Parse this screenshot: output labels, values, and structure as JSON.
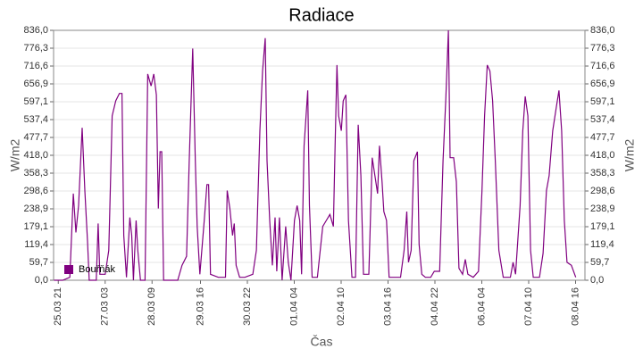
{
  "chart_data": {
    "type": "line",
    "title": "Radiace",
    "x_label": "Čas",
    "y_label": "W/m2",
    "y2_label": "W/m2",
    "xlim": [
      18,
      358
    ],
    "xticks": [
      {
        "value": 21,
        "label": "25.03 21"
      },
      {
        "value": 51,
        "label": "27.03 03"
      },
      {
        "value": 81,
        "label": "28.03 09"
      },
      {
        "value": 112,
        "label": "29.03 16"
      },
      {
        "value": 142,
        "label": "30.03 22"
      },
      {
        "value": 172,
        "label": "01.04 04"
      },
      {
        "value": 202,
        "label": "02.04 10"
      },
      {
        "value": 232,
        "label": "03.04 16"
      },
      {
        "value": 262,
        "label": "04.04 22"
      },
      {
        "value": 292,
        "label": "06.04 04"
      },
      {
        "value": 322,
        "label": "07.04 10"
      },
      {
        "value": 352,
        "label": "08.04 16"
      }
    ],
    "ylim": [
      0,
      836
    ],
    "yticks": [
      {
        "value": 0,
        "label": "0,0"
      },
      {
        "value": 59.7,
        "label": "59,7"
      },
      {
        "value": 119.4,
        "label": "119,4"
      },
      {
        "value": 179.1,
        "label": "179,1"
      },
      {
        "value": 238.9,
        "label": "238,9"
      },
      {
        "value": 298.6,
        "label": "298,6"
      },
      {
        "value": 358.3,
        "label": "358,3"
      },
      {
        "value": 418.0,
        "label": "418,0"
      },
      {
        "value": 477.7,
        "label": "477,7"
      },
      {
        "value": 537.4,
        "label": "537,4"
      },
      {
        "value": 597.1,
        "label": "597,1"
      },
      {
        "value": 656.9,
        "label": "656,9"
      },
      {
        "value": 716.6,
        "label": "716,6"
      },
      {
        "value": 776.3,
        "label": "776,3"
      },
      {
        "value": 836.0,
        "label": "836,0"
      }
    ],
    "grid": true,
    "legend": "bottom-left",
    "x": [
      18.2,
      23.8,
      28.4,
      30.6,
      32.3,
      34.0,
      36.3,
      38.0,
      39.7,
      40.8,
      45.3,
      46.5,
      47.6,
      51.0,
      53.3,
      55.5,
      57.8,
      60.1,
      61.8,
      62.9,
      64.6,
      66.8,
      68.0,
      69.1,
      70.8,
      71.9,
      73.6,
      76.5,
      78.2,
      80.4,
      82.1,
      83.8,
      85.0,
      86.1,
      87.2,
      88.4,
      97.4,
      100.2,
      103.1,
      104.8,
      107.0,
      108.7,
      109.9,
      111.6,
      114.4,
      116.1,
      117.2,
      118.4,
      123.4,
      128.0,
      129.1,
      130.8,
      132.5,
      133.6,
      134.8,
      137.0,
      140.4,
      145.5,
      147.8,
      150.0,
      151.7,
      153.4,
      154.6,
      156.3,
      158.0,
      159.7,
      160.8,
      162.5,
      164.2,
      166.5,
      168.2,
      169.9,
      172.1,
      173.8,
      175.5,
      176.7,
      178.3,
      180.6,
      181.7,
      183.4,
      186.8,
      190.2,
      192.5,
      194.8,
      197.0,
      198.2,
      199.3,
      200.4,
      202.1,
      203.3,
      205.0,
      206.7,
      208.9,
      211.2,
      212.9,
      214.6,
      216.3,
      219.7,
      221.9,
      223.6,
      225.3,
      226.5,
      228.2,
      229.3,
      231.0,
      232.7,
      240.0,
      242.3,
      244.0,
      245.1,
      246.8,
      248.5,
      250.8,
      251.9,
      253.6,
      255.9,
      259.3,
      261.6,
      265.0,
      267.2,
      268.9,
      270.6,
      271.7,
      274.0,
      275.7,
      277.4,
      279.7,
      281.4,
      283.1,
      286.5,
      289.9,
      292.1,
      293.8,
      295.5,
      297.2,
      298.9,
      300.6,
      302.9,
      305.7,
      310.3,
      312.0,
      313.6,
      316.5,
      318.2,
      319.8,
      321.5,
      323.2,
      324.9,
      328.9,
      331.2,
      333.4,
      335.1,
      337.4,
      339.7,
      341.4,
      343.1,
      344.8,
      346.5,
      349.3,
      352.1
    ],
    "series": [
      {
        "name": "Bouřňák",
        "color": "#800080",
        "values": [
          0,
          0,
          10,
          290,
          160,
          250,
          510,
          300,
          130,
          0,
          0,
          190,
          20,
          20,
          100,
          550,
          600,
          625,
          625,
          150,
          10,
          210,
          150,
          0,
          200,
          100,
          0,
          0,
          690,
          650,
          690,
          620,
          240,
          430,
          430,
          0,
          0,
          50,
          80,
          400,
          775,
          400,
          180,
          20,
          200,
          320,
          320,
          20,
          10,
          10,
          300,
          240,
          150,
          190,
          50,
          10,
          10,
          20,
          100,
          500,
          700,
          810,
          400,
          200,
          50,
          210,
          30,
          210,
          0,
          180,
          60,
          0,
          200,
          250,
          200,
          20,
          450,
          635,
          250,
          10,
          10,
          180,
          200,
          220,
          180,
          460,
          720,
          550,
          500,
          600,
          620,
          200,
          10,
          10,
          520,
          350,
          20,
          20,
          410,
          350,
          290,
          450,
          330,
          230,
          200,
          10,
          10,
          100,
          230,
          60,
          100,
          400,
          430,
          120,
          20,
          10,
          10,
          30,
          30,
          400,
          600,
          836,
          410,
          410,
          330,
          40,
          20,
          70,
          20,
          10,
          30,
          300,
          550,
          720,
          700,
          600,
          400,
          100,
          10,
          10,
          60,
          20,
          250,
          500,
          615,
          550,
          100,
          10,
          10,
          90,
          300,
          350,
          500,
          580,
          635,
          500,
          200,
          60,
          50,
          10
        ]
      }
    ]
  }
}
